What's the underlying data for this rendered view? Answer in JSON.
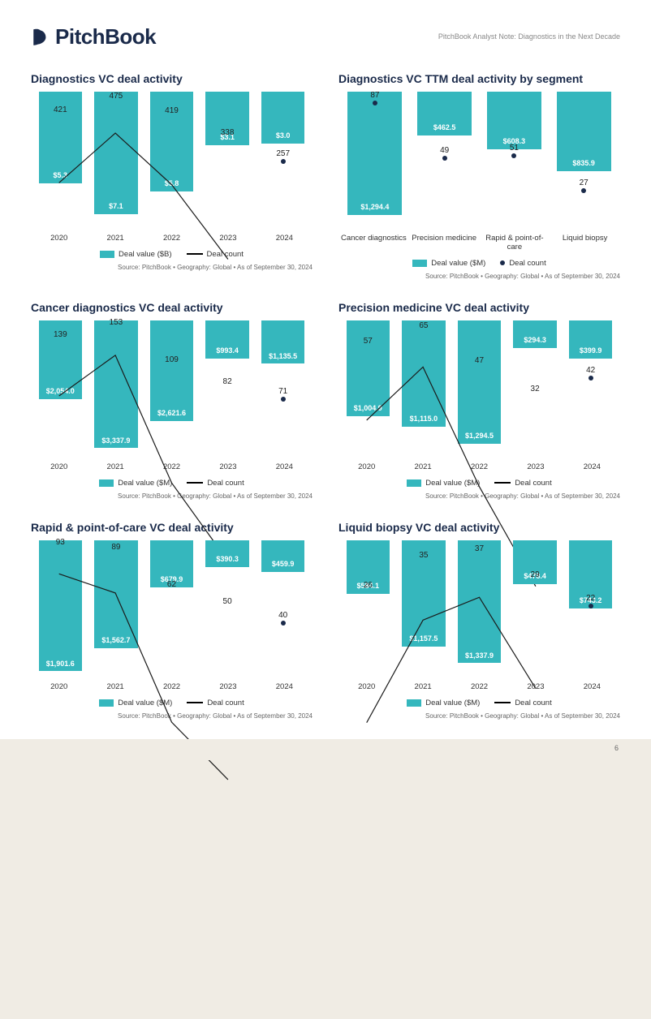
{
  "brand": {
    "name": "PitchBook"
  },
  "header_note": "PitchBook Analyst Note: Diagnostics in the Next Decade",
  "page_number": "6",
  "colors": {
    "bar": "#35b7bd",
    "line": "#1a1a1a",
    "dot": "#1a2a4a",
    "bar_text": "#ffffff",
    "count_text": "#222222",
    "title": "#1a2a4a",
    "page_bg": "#ffffff",
    "source_text": "#666666"
  },
  "legend_labels": {
    "value_b": "Deal value ($B)",
    "value_m": "Deal value ($M)",
    "count_line": "Deal count",
    "count_dot": "Deal count"
  },
  "source_text": "Source: PitchBook  •  Geography: Global  •  As of September 30, 2024",
  "charts": [
    {
      "id": "diagnostics-overall",
      "title": "Diagnostics VC deal activity",
      "value_unit": "B",
      "categories": [
        "2020",
        "2021",
        "2022",
        "2023",
        "2024"
      ],
      "values": [
        5.3,
        7.1,
        5.8,
        3.1,
        3.0
      ],
      "value_labels": [
        "$5.3",
        "$7.1",
        "$5.8",
        "$3.1",
        "$3.0"
      ],
      "counts": [
        421,
        475,
        419,
        338,
        257
      ],
      "count_labels": [
        "421",
        "475",
        "419",
        "338",
        "257"
      ],
      "value_max": 8.0,
      "count_max": 520,
      "count_style": "line_with_final_dot",
      "legend": [
        "value_b",
        "count_line"
      ]
    },
    {
      "id": "ttm-segment",
      "title": "Diagnostics VC TTM deal activity by segment",
      "value_unit": "M",
      "categories": [
        "Cancer diagnostics",
        "Precision medicine",
        "Rapid & point-of-care",
        "Liquid biopsy"
      ],
      "values": [
        1294.4,
        462.5,
        608.3,
        835.9
      ],
      "value_labels": [
        "$1,294.4",
        "$462.5",
        "$608.3",
        "$835.9"
      ],
      "counts": [
        87,
        49,
        51,
        27
      ],
      "count_labels": [
        "87",
        "49",
        "51",
        "27"
      ],
      "value_max": 1450,
      "count_max": 95,
      "count_style": "dots_only",
      "legend": [
        "value_m",
        "count_dot"
      ]
    },
    {
      "id": "cancer-diagnostics",
      "title": "Cancer diagnostics VC deal activity",
      "value_unit": "M",
      "categories": [
        "2020",
        "2021",
        "2022",
        "2023",
        "2024"
      ],
      "values": [
        2054.0,
        3337.9,
        2621.6,
        993.4,
        1135.5
      ],
      "value_labels": [
        "$2,054.0",
        "$3,337.9",
        "$2,621.6",
        "$993.4",
        "$1,135.5"
      ],
      "counts": [
        139,
        153,
        109,
        82,
        71
      ],
      "count_labels": [
        "139",
        "153",
        "109",
        "82",
        "71"
      ],
      "value_max": 3600,
      "count_max": 165,
      "count_style": "line_with_final_dot",
      "legend": [
        "value_m",
        "count_line"
      ]
    },
    {
      "id": "precision-medicine",
      "title": "Precision medicine VC deal activity",
      "value_unit": "M",
      "categories": [
        "2020",
        "2021",
        "2022",
        "2023",
        "2024"
      ],
      "values": [
        1004.9,
        1115.0,
        1294.5,
        294.3,
        399.9
      ],
      "value_labels": [
        "$1,004.9",
        "$1,115.0",
        "$1,294.5",
        "$294.3",
        "$399.9"
      ],
      "counts": [
        57,
        65,
        47,
        32,
        42
      ],
      "count_labels": [
        "57",
        "65",
        "47",
        "32",
        "42"
      ],
      "value_max": 1450,
      "count_max": 72,
      "count_style": "line_with_final_dot",
      "legend": [
        "value_m",
        "count_line"
      ]
    },
    {
      "id": "rapid-point-of-care",
      "title": "Rapid & point-of-care VC deal activity",
      "value_unit": "M",
      "categories": [
        "2020",
        "2021",
        "2022",
        "2023",
        "2024"
      ],
      "values": [
        1901.6,
        1562.7,
        679.9,
        390.3,
        459.9
      ],
      "value_labels": [
        "$1,901.6",
        "$1,562.7",
        "$679.9",
        "$390.3",
        "$459.9"
      ],
      "counts": [
        93,
        89,
        62,
        50,
        40
      ],
      "count_labels": [
        "93",
        "89",
        "62",
        "50",
        "40"
      ],
      "value_max": 2000,
      "count_max": 100,
      "count_style": "line_with_final_dot",
      "legend": [
        "value_m",
        "count_line"
      ]
    },
    {
      "id": "liquid-biopsy",
      "title": "Liquid biopsy VC deal activity",
      "value_unit": "M",
      "categories": [
        "2020",
        "2021",
        "2022",
        "2023",
        "2024"
      ],
      "values": [
        584.1,
        1157.5,
        1337.9,
        478.4,
        743.2
      ],
      "value_labels": [
        "$584.1",
        "$1,157.5",
        "$1,337.9",
        "$478.4",
        "$743.2"
      ],
      "counts": [
        26,
        35,
        37,
        29,
        22
      ],
      "count_labels": [
        "26",
        "35",
        "37",
        "29",
        "22"
      ],
      "value_max": 1500,
      "count_max": 42,
      "count_style": "line_with_final_dot",
      "legend": [
        "value_m",
        "count_line"
      ]
    }
  ]
}
